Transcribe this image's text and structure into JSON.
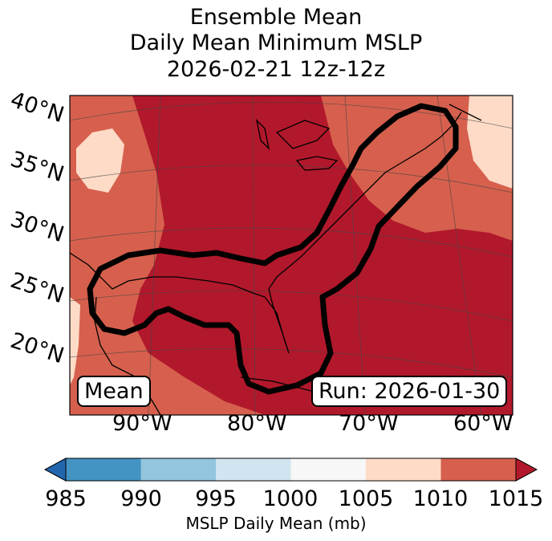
{
  "title": {
    "line1": "Ensemble Mean",
    "line2": "Daily Mean Minimum MSLP",
    "line3": "2026-02-21 12z-12z"
  },
  "map": {
    "lat_labels": [
      "40°N",
      "35°N",
      "30°N",
      "25°N",
      "20°N"
    ],
    "lon_labels": [
      "90°W",
      "80°W",
      "70°W",
      "60°W"
    ],
    "mean_label": "Mean",
    "run_label": "Run: 2026-01-30",
    "contour_description_colors": {
      "contour": "#000000"
    }
  },
  "colorbar": {
    "ticks": [
      "985",
      "990",
      "995",
      "1000",
      "1005",
      "1010",
      "1015"
    ],
    "label": "MSLP Daily Mean (mb)",
    "colors": [
      "#2166ac",
      "#4393c3",
      "#92c5de",
      "#d1e5f0",
      "#f7f7f7",
      "#fddbc7",
      "#d6604d",
      "#b2182b"
    ]
  }
}
